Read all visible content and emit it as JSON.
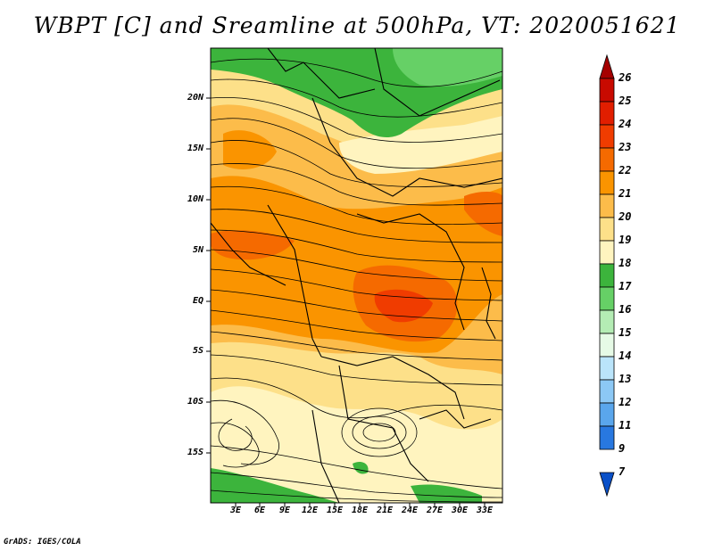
{
  "title": "WBPT [C] and Sreamline at 500hPa, VT: 2020051621",
  "footer": "GrADS: IGES/COLA",
  "map": {
    "lat_labels": [
      "20N",
      "15N",
      "10N",
      "5N",
      "EQ",
      "5S",
      "10S",
      "15S"
    ],
    "lon_labels": [
      "3E",
      "6E",
      "9E",
      "12E",
      "15E",
      "18E",
      "21E",
      "24E",
      "27E",
      "30E",
      "33E"
    ]
  },
  "colorbar": {
    "labels": [
      "26",
      "25",
      "24",
      "23",
      "22",
      "21",
      "20",
      "19",
      "18",
      "17",
      "16",
      "15",
      "14",
      "13",
      "12",
      "11",
      "9",
      "7"
    ],
    "colors": [
      "#a50000",
      "#c80a00",
      "#e11e00",
      "#f03c00",
      "#f56a00",
      "#fa9400",
      "#fcbc4a",
      "#fde089",
      "#fff4bf",
      "#3cb43c",
      "#66d066",
      "#b4ecb4",
      "#e6fae6",
      "#bae4fa",
      "#8cc8f5",
      "#5aa6ec",
      "#2878e0",
      "#0a50c8"
    ]
  }
}
